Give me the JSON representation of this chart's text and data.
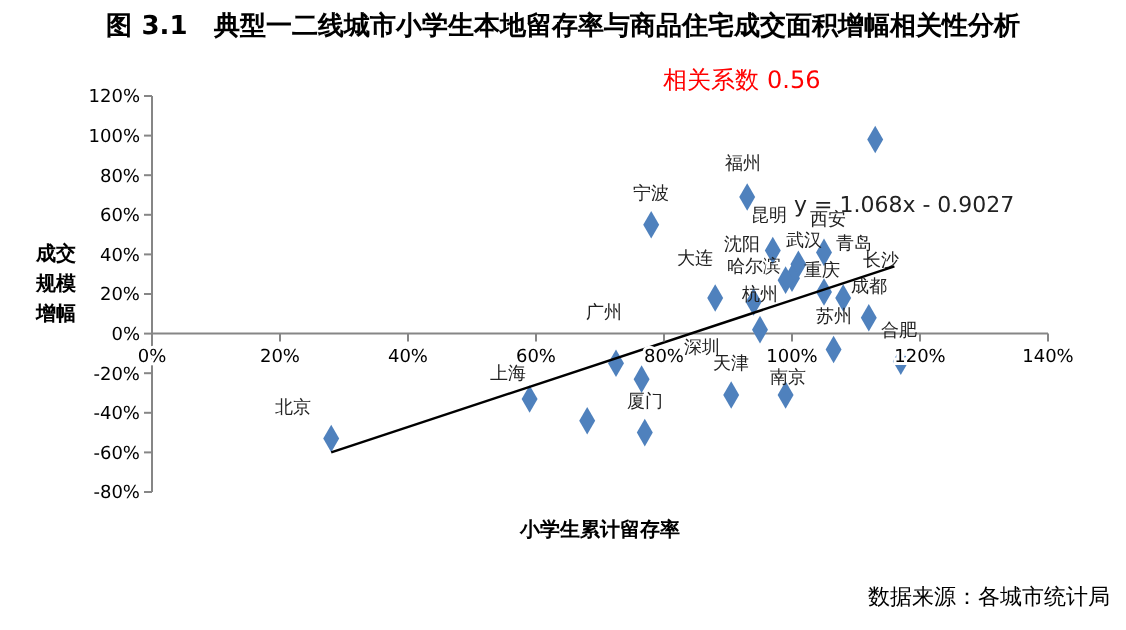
{
  "chart_data": {
    "type": "scatter",
    "title": "图 3.1　典型一二线城市小学生本地留存率与商品住宅成交面积增幅相关性分析",
    "xlabel": "小学生累计留存率",
    "ylabel": "成交规模增幅",
    "grid": false,
    "xlim": [
      0,
      140
    ],
    "xticks": [
      {
        "value": 0,
        "label": "0%"
      },
      {
        "value": 20,
        "label": "20%"
      },
      {
        "value": 40,
        "label": "40%"
      },
      {
        "value": 60,
        "label": "60%"
      },
      {
        "value": 80,
        "label": "80%"
      },
      {
        "value": 100,
        "label": "100%"
      },
      {
        "value": 120,
        "label": "120%"
      },
      {
        "value": 140,
        "label": "140%"
      }
    ],
    "ylim": [
      -80,
      120
    ],
    "yticks": [
      {
        "value": -80,
        "label": "-80%"
      },
      {
        "value": -60,
        "label": "-60%"
      },
      {
        "value": -40,
        "label": "-40%"
      },
      {
        "value": -20,
        "label": "-20%"
      },
      {
        "value": 0,
        "label": "0%"
      },
      {
        "value": 20,
        "label": "20%"
      },
      {
        "value": 40,
        "label": "40%"
      },
      {
        "value": 60,
        "label": "60%"
      },
      {
        "value": 80,
        "label": "80%"
      },
      {
        "value": 100,
        "label": "100%"
      },
      {
        "value": 120,
        "label": "120%"
      }
    ],
    "series": [
      {
        "marker": "diamond",
        "color": "#4f81bd",
        "value_labels": [
          "北京",
          "上海",
          null,
          "广州",
          null,
          "福州",
          "宁波",
          "昆明",
          "青岛",
          "西安",
          "武汉",
          "沈阳",
          "重庆",
          "长沙",
          "大连",
          "哈尔滨",
          "成都",
          "杭州",
          "苏州",
          "合肥",
          "深圳",
          "天津",
          "南京",
          "厦门"
        ],
        "x": [
          28,
          59,
          68,
          72.5,
          113,
          93,
          78,
          97,
          105,
          101,
          100,
          99,
          105,
          108,
          88,
          94,
          112,
          95,
          106.5,
          117,
          76.5,
          90.5,
          99,
          77
        ],
        "values": [
          -53,
          -33,
          -44,
          -15,
          98,
          69,
          55,
          42,
          41,
          35,
          28,
          27,
          21,
          18,
          18,
          16,
          8,
          2,
          -8,
          -14,
          -23,
          -31,
          -31,
          -50
        ]
      },
      {
        "type": "line",
        "color": "#000000",
        "x": [
          28,
          116
        ],
        "values": [
          -60,
          34
        ]
      }
    ],
    "annotations": [
      "y = 1.068x - 0.9027",
      "相关系数 0.56",
      "数据来源：各城市统计局"
    ]
  }
}
